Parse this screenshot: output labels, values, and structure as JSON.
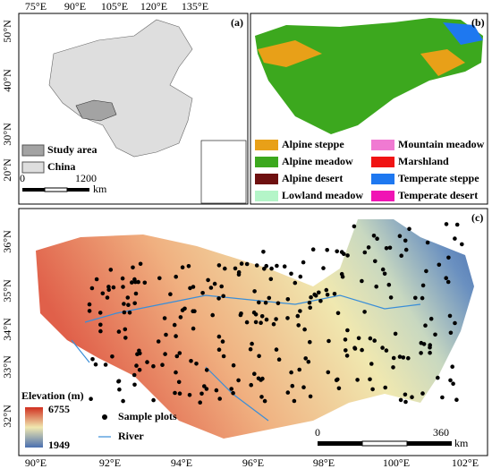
{
  "panels": {
    "a": {
      "label": "(a)",
      "lon_labels": [
        "75°E",
        "90°E",
        "105°E",
        "120°E",
        "135°E"
      ],
      "lat_labels": [
        "50°N",
        "40°N",
        "30°N",
        "20°N"
      ],
      "legend": [
        {
          "name": "Study area",
          "color": "#a3a3a3"
        },
        {
          "name": "China",
          "color": "#dedede"
        }
      ],
      "scale": [
        "0",
        "1200",
        "km"
      ]
    },
    "b": {
      "label": "(b)",
      "legend": [
        {
          "name": "Alpine steppe",
          "color": "#e8a018"
        },
        {
          "name": "Alpine meadow",
          "color": "#3ca81e"
        },
        {
          "name": "Alpine desert",
          "color": "#6e1010"
        },
        {
          "name": "Lowland meadow",
          "color": "#b4f5c8"
        },
        {
          "name": "Mountain meadow",
          "color": "#f07ad2"
        },
        {
          "name": "Marshland",
          "color": "#f01414"
        },
        {
          "name": "Temperate steppe",
          "color": "#1e78f0"
        },
        {
          "name": "Temperate desert",
          "color": "#f014b4"
        }
      ]
    },
    "c": {
      "label": "(c)",
      "lon_labels": [
        "90°E",
        "92°E",
        "94°E",
        "96°E",
        "98°E",
        "100°E",
        "102°E"
      ],
      "lat_labels": [
        "36°N",
        "35°N",
        "34°N",
        "33°N",
        "32°N"
      ],
      "elevation_title": "Elevation (m)",
      "elevation_max": "6755",
      "elevation_min": "1949",
      "legend": [
        "Sample plots",
        "River"
      ],
      "scale": [
        "0",
        "360",
        "km"
      ]
    }
  }
}
